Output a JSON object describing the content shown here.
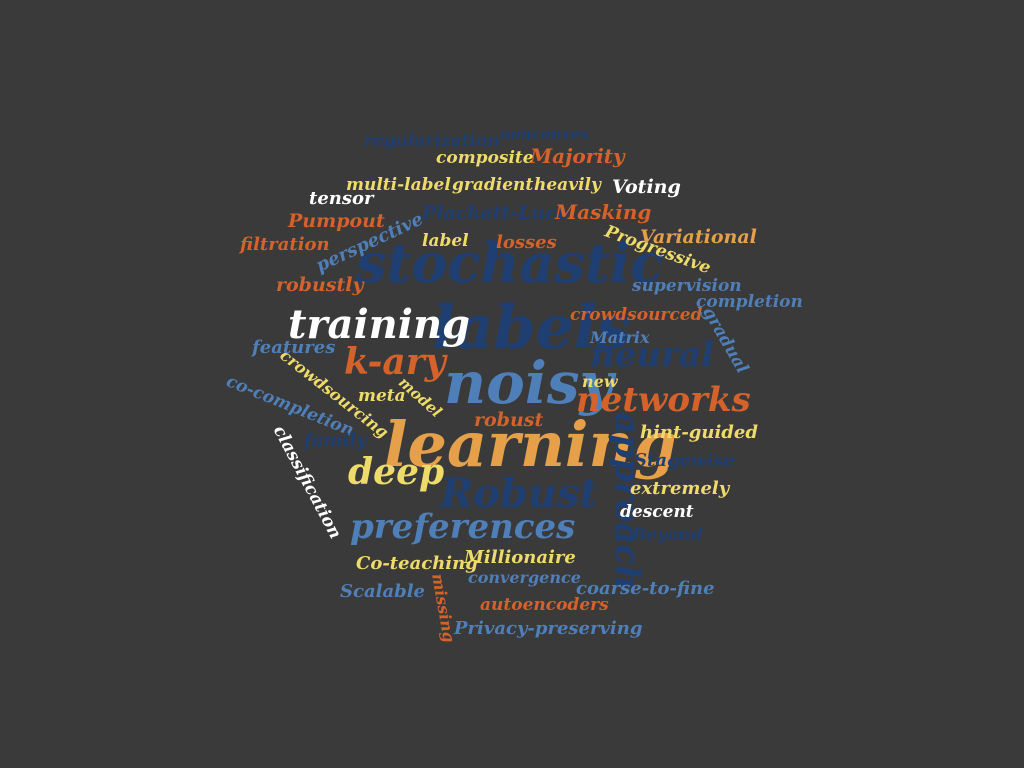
{
  "palette": {
    "background": "#3a3a3a",
    "dark_blue": "#1f3f73",
    "steel_blue": "#4f7fb8",
    "orange": "#d4622a",
    "gold": "#e6a04a",
    "yellow": "#eedb6a",
    "white": "#ffffff"
  },
  "words": [
    {
      "text": "learning",
      "color": "#e6a04a"
    },
    {
      "text": "noisy",
      "color": "#4f7fb8"
    },
    {
      "text": "labels",
      "color": "#1f3f73"
    },
    {
      "text": "stochastic",
      "color": "#1f3f73"
    },
    {
      "text": "training",
      "color": "#ffffff"
    },
    {
      "text": "networks",
      "color": "#d4622a"
    },
    {
      "text": "preferences",
      "color": "#4f7fb8"
    },
    {
      "text": "Robust",
      "color": "#1f3f73"
    },
    {
      "text": "deep",
      "color": "#eedb6a"
    },
    {
      "text": "k-ary",
      "color": "#d4622a"
    },
    {
      "text": "neural",
      "color": "#1f3f73"
    },
    {
      "text": "approach",
      "color": "#1f3f73"
    },
    {
      "text": "regularization",
      "color": "#1f3f73"
    },
    {
      "text": "nonconvex",
      "color": "#1f3f73"
    },
    {
      "text": "composite",
      "color": "#eedb6a"
    },
    {
      "text": "Majority",
      "color": "#d4622a"
    },
    {
      "text": "multi-label",
      "color": "#eedb6a"
    },
    {
      "text": "gradient",
      "color": "#eedb6a"
    },
    {
      "text": "heavily",
      "color": "#eedb6a"
    },
    {
      "text": "Voting",
      "color": "#ffffff"
    },
    {
      "text": "tensor",
      "color": "#ffffff"
    },
    {
      "text": "Plackett-Luce",
      "color": "#1f3f73"
    },
    {
      "text": "Masking",
      "color": "#d4622a"
    },
    {
      "text": "Pumpout",
      "color": "#d4622a"
    },
    {
      "text": "perspective",
      "color": "#4f7fb8"
    },
    {
      "text": "filtration",
      "color": "#d4622a"
    },
    {
      "text": "label",
      "color": "#eedb6a"
    },
    {
      "text": "losses",
      "color": "#d4622a"
    },
    {
      "text": "Progressive",
      "color": "#eedb6a"
    },
    {
      "text": "Variational",
      "color": "#e6a04a"
    },
    {
      "text": "robustly",
      "color": "#d4622a"
    },
    {
      "text": "supervision",
      "color": "#4f7fb8"
    },
    {
      "text": "completion",
      "color": "#4f7fb8"
    },
    {
      "text": "crowdsourced",
      "color": "#d4622a"
    },
    {
      "text": "gradual",
      "color": "#4f7fb8"
    },
    {
      "text": "features",
      "color": "#4f7fb8"
    },
    {
      "text": "Matrix",
      "color": "#4f7fb8"
    },
    {
      "text": "crowdsourcing",
      "color": "#eedb6a"
    },
    {
      "text": "new",
      "color": "#eedb6a"
    },
    {
      "text": "co-completion",
      "color": "#4f7fb8"
    },
    {
      "text": "meta",
      "color": "#eedb6a"
    },
    {
      "text": "model",
      "color": "#eedb6a"
    },
    {
      "text": "robust",
      "color": "#d4622a"
    },
    {
      "text": "family",
      "color": "#1f3f73"
    },
    {
      "text": "hint-guided",
      "color": "#eedb6a"
    },
    {
      "text": "classification",
      "color": "#ffffff"
    },
    {
      "text": "Stagewise",
      "color": "#1f3f73"
    },
    {
      "text": "extremely",
      "color": "#eedb6a"
    },
    {
      "text": "descent",
      "color": "#ffffff"
    },
    {
      "text": "Beyond",
      "color": "#1f3f73"
    },
    {
      "text": "Co-teaching",
      "color": "#eedb6a"
    },
    {
      "text": "Millionaire",
      "color": "#eedb6a"
    },
    {
      "text": "convergence",
      "color": "#4f7fb8"
    },
    {
      "text": "Scalable",
      "color": "#4f7fb8"
    },
    {
      "text": "missing",
      "color": "#d4622a"
    },
    {
      "text": "autoencoders",
      "color": "#d4622a"
    },
    {
      "text": "coarse-to-fine",
      "color": "#4f7fb8"
    },
    {
      "text": "Privacy-preserving",
      "color": "#4f7fb8"
    }
  ]
}
